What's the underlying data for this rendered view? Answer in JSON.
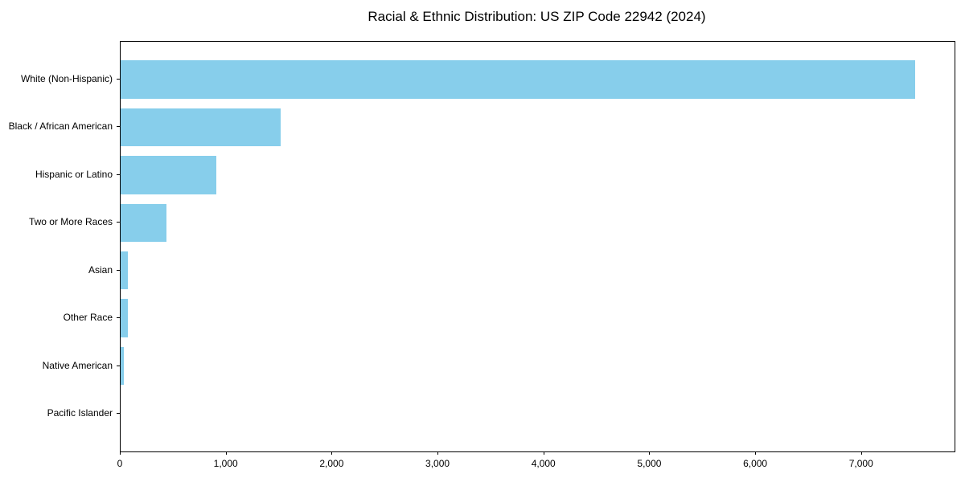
{
  "title": "Racial & Ethnic Distribution: US ZIP Code 22942 (2024)",
  "chart_data": {
    "type": "bar",
    "orientation": "horizontal",
    "title": "Racial & Ethnic Distribution: US ZIP Code 22942 (2024)",
    "categories": [
      "White (Non-Hispanic)",
      "Black / African American",
      "Hispanic or Latino",
      "Two or More Races",
      "Asian",
      "Other Race",
      "Native American",
      "Pacific Islander"
    ],
    "values": [
      7500,
      1510,
      900,
      435,
      70,
      65,
      30,
      0
    ],
    "xlabel": "",
    "ylabel": "",
    "xlim": [
      0,
      7875
    ],
    "xticks": [
      0,
      1000,
      2000,
      3000,
      4000,
      5000,
      6000,
      7000
    ],
    "xtick_labels": [
      "0",
      "1,000",
      "2,000",
      "3,000",
      "4,000",
      "5,000",
      "6,000",
      "7,000"
    ],
    "grid": false,
    "legend": null,
    "bar_color": "#87CEEB"
  },
  "colors": {
    "bar": "#87CEEB",
    "axis": "#000000",
    "text": "#000000",
    "background": "#FFFFFF"
  }
}
